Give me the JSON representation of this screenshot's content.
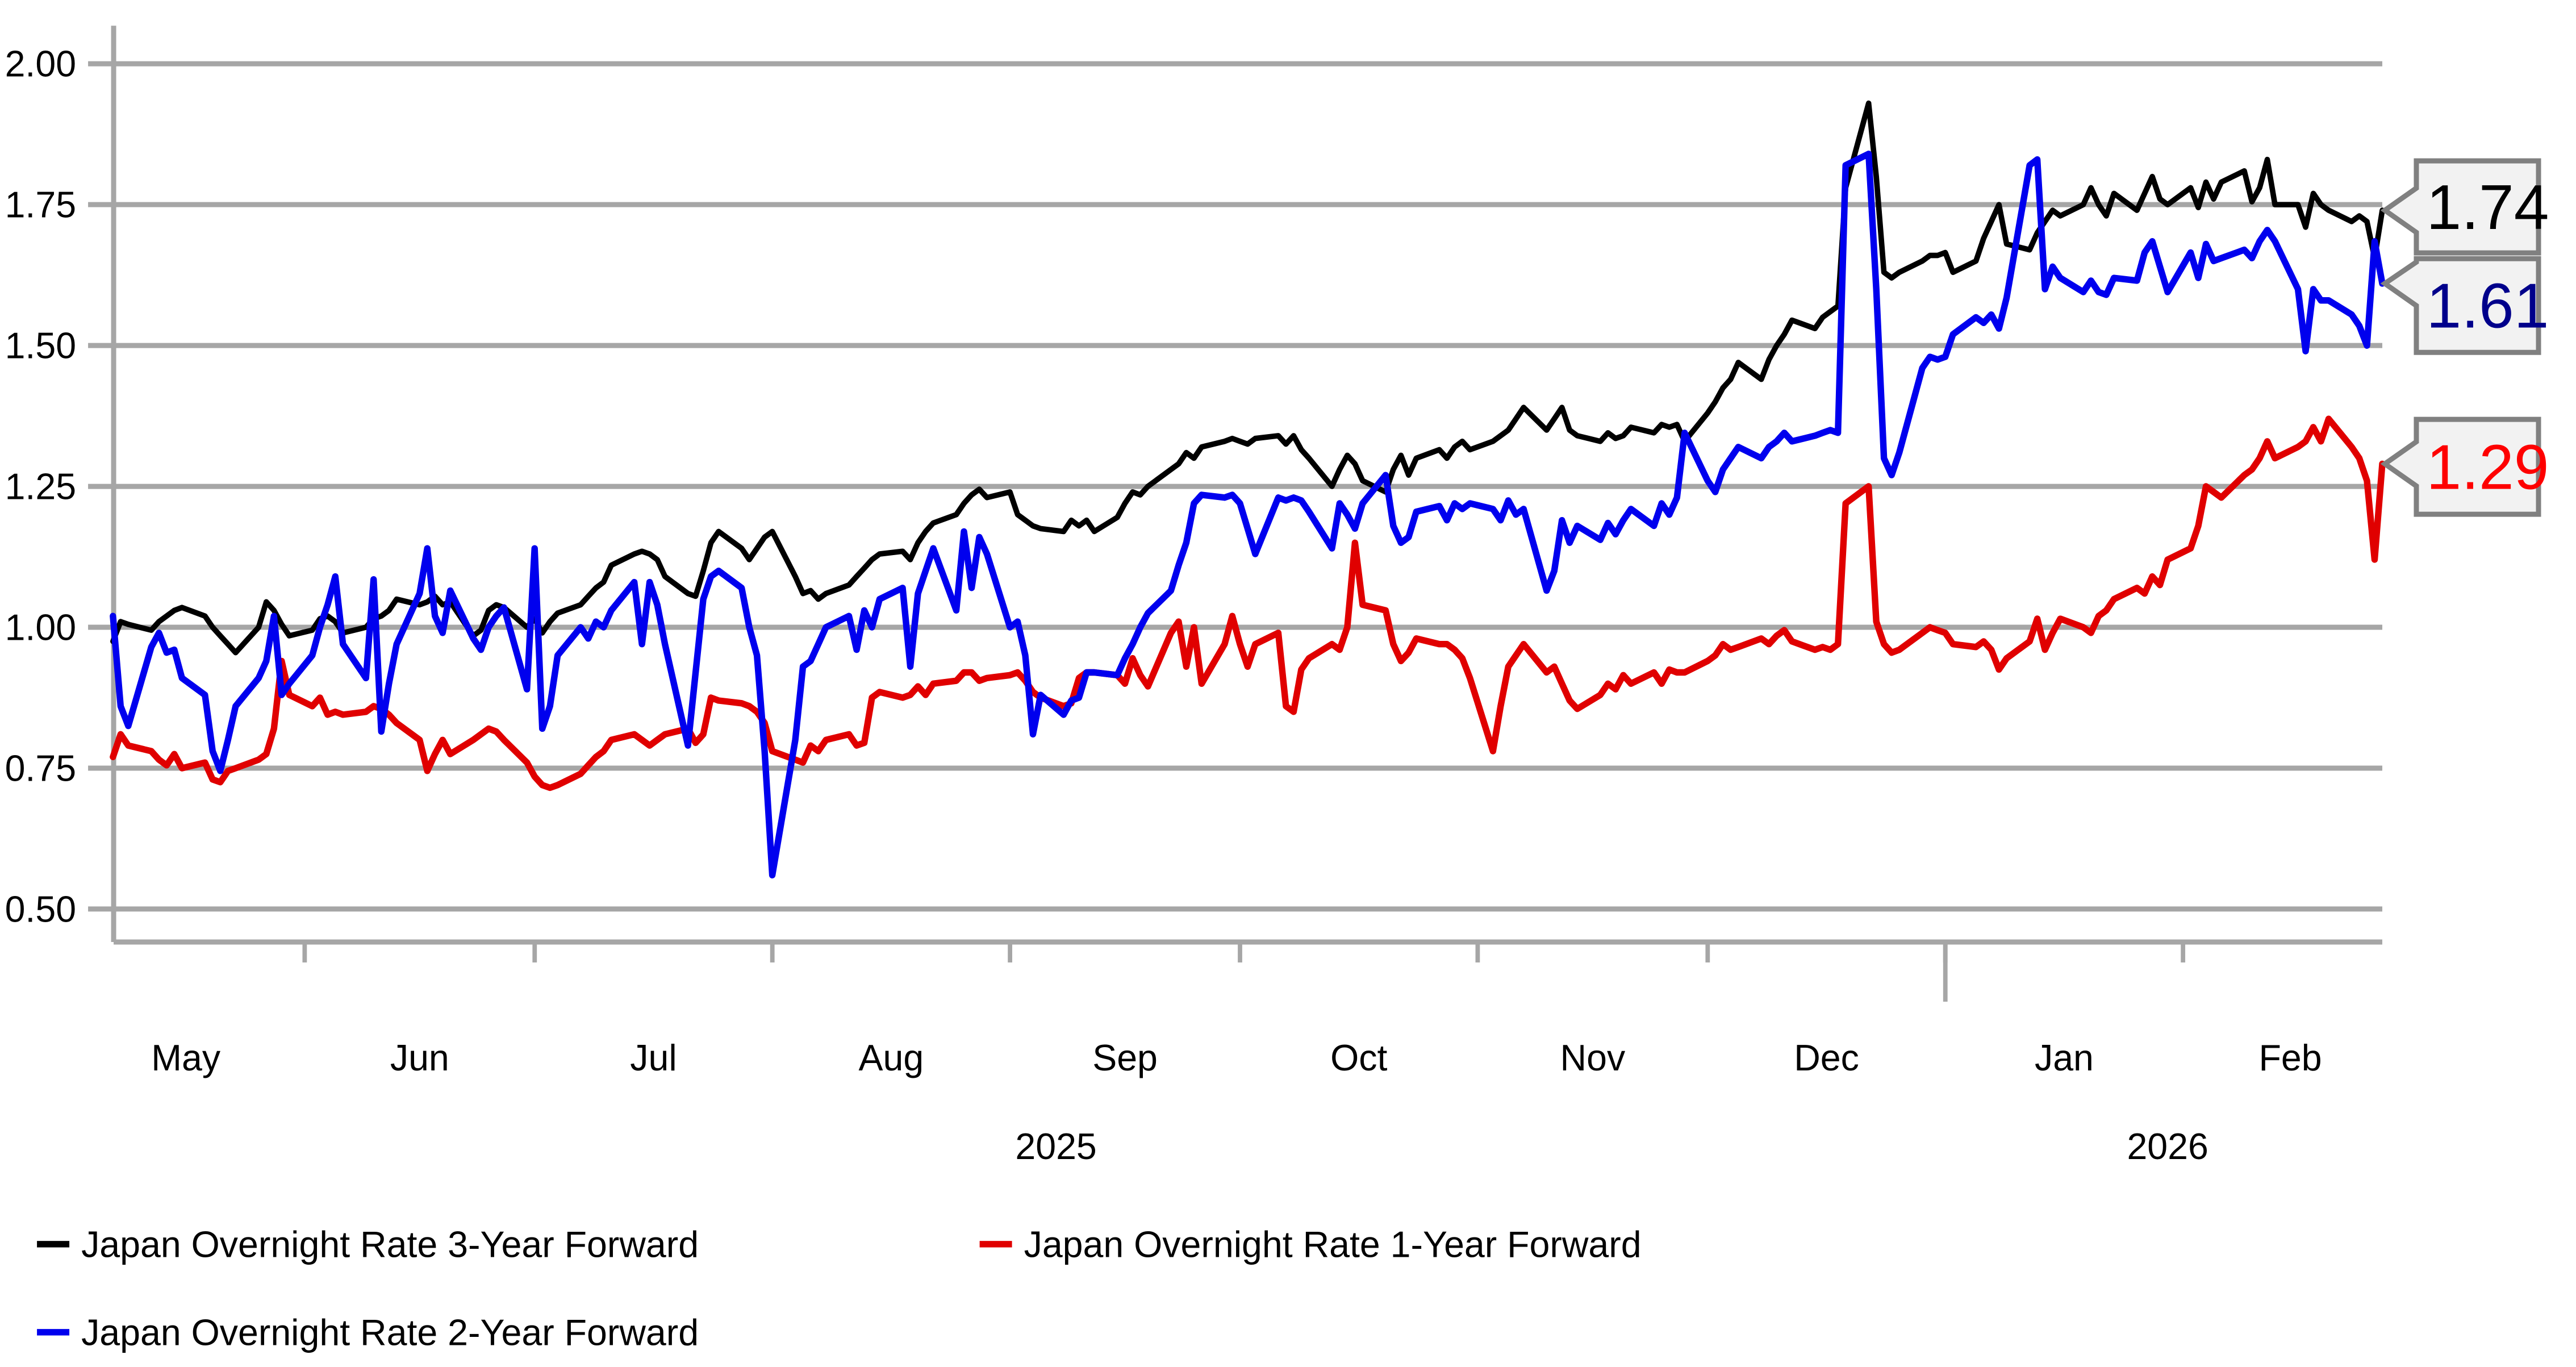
{
  "chart_data": {
    "type": "line",
    "title": "",
    "ylabel": "",
    "xlabel": "",
    "grid": "horizontal",
    "legend_position": "bottom-left",
    "ylim": [
      0.44,
      2.07
    ],
    "yticks": [
      {
        "value": 2.0,
        "label": "2.00"
      },
      {
        "value": 1.75,
        "label": "1.75"
      },
      {
        "value": 1.5,
        "label": "1.50"
      },
      {
        "value": 1.25,
        "label": "1.25"
      },
      {
        "value": 1.0,
        "label": "1.00"
      },
      {
        "value": 0.75,
        "label": "0.75"
      },
      {
        "value": 0.5,
        "label": "0.50"
      }
    ],
    "x_axis": {
      "unit": "days since 2025-05-01",
      "month_boundary_tick_offsets": [
        31,
        61,
        92,
        123,
        153,
        184,
        214,
        245,
        276
      ],
      "year_boundary_tick_offset": 245,
      "month_labels": [
        {
          "text": "May",
          "offset": 15.5
        },
        {
          "text": "Jun",
          "offset": 46
        },
        {
          "text": "Jul",
          "offset": 76.5
        },
        {
          "text": "Aug",
          "offset": 107.5
        },
        {
          "text": "Sep",
          "offset": 138
        },
        {
          "text": "Oct",
          "offset": 168.5
        },
        {
          "text": "Nov",
          "offset": 199
        },
        {
          "text": "Dec",
          "offset": 229.5
        },
        {
          "text": "Jan",
          "offset": 260.5
        },
        {
          "text": "Feb",
          "offset": 290
        }
      ],
      "year_labels": [
        {
          "text": "2025",
          "offset": 129
        },
        {
          "text": "2026",
          "offset": 274
        }
      ]
    },
    "x_offsets": [
      6,
      7,
      8,
      11,
      12,
      13,
      14,
      15,
      18,
      19,
      20,
      21,
      22,
      25,
      26,
      27,
      28,
      29,
      32,
      33,
      34,
      35,
      36,
      39,
      40,
      41,
      42,
      43,
      46,
      47,
      48,
      49,
      50,
      53,
      54,
      55,
      56,
      57,
      60,
      61,
      62,
      63,
      64,
      67,
      68,
      69,
      70,
      71,
      74,
      75,
      76,
      77,
      78,
      81,
      82,
      83,
      84,
      85,
      88,
      89,
      90,
      91,
      92,
      95,
      96,
      97,
      98,
      99,
      102,
      103,
      104,
      105,
      106,
      109,
      110,
      111,
      112,
      113,
      116,
      117,
      118,
      119,
      120,
      123,
      124,
      125,
      126,
      127,
      130,
      131,
      132,
      133,
      134,
      137,
      138,
      139,
      140,
      141,
      144,
      145,
      146,
      147,
      148,
      151,
      152,
      153,
      154,
      155,
      158,
      159,
      160,
      161,
      162,
      165,
      166,
      167,
      168,
      169,
      172,
      173,
      174,
      175,
      176,
      179,
      180,
      181,
      182,
      183,
      186,
      187,
      188,
      189,
      190,
      193,
      194,
      195,
      196,
      197,
      200,
      201,
      202,
      203,
      204,
      207,
      208,
      209,
      210,
      211,
      214,
      215,
      216,
      217,
      218,
      221,
      222,
      223,
      224,
      225,
      228,
      229,
      230,
      231,
      232,
      235,
      236,
      237,
      238,
      239,
      242,
      243,
      244,
      245,
      246,
      249,
      250,
      251,
      252,
      253,
      256,
      257,
      258,
      259,
      260,
      263,
      264,
      265,
      266,
      267,
      270,
      271,
      272,
      273,
      274,
      277,
      278,
      279,
      280,
      281,
      284,
      285,
      286,
      287,
      288,
      291,
      292,
      293,
      294,
      295,
      298,
      299,
      300,
      301,
      302
    ],
    "series": [
      {
        "name": "Japan Overnight Rate 3-Year Forward",
        "color": "#000000",
        "stroke_width": 3.2,
        "end_value": 1.74,
        "values": [
          0.975,
          1.01,
          1.005,
          0.995,
          1.01,
          1.02,
          1.03,
          1.035,
          1.02,
          1.0,
          0.985,
          0.97,
          0.955,
          1.0,
          1.045,
          1.03,
          1.005,
          0.985,
          0.995,
          1.015,
          1.02,
          1.01,
          0.99,
          1.0,
          1.015,
          1.02,
          1.03,
          1.05,
          1.04,
          1.045,
          1.055,
          1.04,
          1.045,
          0.985,
          0.995,
          1.03,
          1.04,
          1.035,
          1.0,
          1.015,
          0.99,
          1.01,
          1.025,
          1.04,
          1.055,
          1.07,
          1.08,
          1.11,
          1.13,
          1.135,
          1.13,
          1.12,
          1.09,
          1.06,
          1.055,
          1.1,
          1.15,
          1.17,
          1.14,
          1.12,
          1.14,
          1.16,
          1.17,
          1.09,
          1.06,
          1.065,
          1.05,
          1.06,
          1.075,
          1.09,
          1.105,
          1.12,
          1.13,
          1.135,
          1.12,
          1.15,
          1.17,
          1.185,
          1.2,
          1.22,
          1.235,
          1.245,
          1.23,
          1.24,
          1.2,
          1.19,
          1.18,
          1.175,
          1.17,
          1.19,
          1.18,
          1.19,
          1.17,
          1.195,
          1.22,
          1.24,
          1.235,
          1.25,
          1.28,
          1.29,
          1.31,
          1.3,
          1.32,
          1.33,
          1.335,
          1.33,
          1.325,
          1.335,
          1.34,
          1.325,
          1.34,
          1.315,
          1.3,
          1.25,
          1.28,
          1.305,
          1.29,
          1.26,
          1.24,
          1.28,
          1.305,
          1.27,
          1.3,
          1.315,
          1.3,
          1.32,
          1.33,
          1.315,
          1.33,
          1.34,
          1.35,
          1.37,
          1.39,
          1.35,
          1.37,
          1.39,
          1.35,
          1.34,
          1.33,
          1.345,
          1.335,
          1.34,
          1.355,
          1.345,
          1.36,
          1.355,
          1.36,
          1.33,
          1.38,
          1.4,
          1.425,
          1.44,
          1.47,
          1.44,
          1.475,
          1.5,
          1.52,
          1.545,
          1.53,
          1.55,
          1.56,
          1.57,
          1.78,
          1.93,
          1.8,
          1.63,
          1.62,
          1.63,
          1.65,
          1.66,
          1.66,
          1.665,
          1.63,
          1.65,
          1.69,
          1.72,
          1.75,
          1.68,
          1.67,
          1.7,
          1.72,
          1.74,
          1.73,
          1.75,
          1.78,
          1.75,
          1.73,
          1.77,
          1.74,
          1.77,
          1.8,
          1.76,
          1.75,
          1.78,
          1.745,
          1.79,
          1.76,
          1.79,
          1.81,
          1.755,
          1.78,
          1.83,
          1.75,
          1.75,
          1.71,
          1.77,
          1.75,
          1.74,
          1.72,
          1.73,
          1.72,
          1.655,
          1.74
        ]
      },
      {
        "name": "Japan Overnight Rate 1-Year Forward",
        "color": "#e00000",
        "stroke_width": 3.8,
        "end_value": 1.29,
        "values": [
          0.77,
          0.81,
          0.79,
          0.78,
          0.765,
          0.755,
          0.775,
          0.75,
          0.76,
          0.73,
          0.725,
          0.745,
          0.75,
          0.765,
          0.775,
          0.82,
          0.94,
          0.88,
          0.86,
          0.875,
          0.845,
          0.85,
          0.845,
          0.85,
          0.86,
          0.855,
          0.845,
          0.83,
          0.8,
          0.745,
          0.775,
          0.8,
          0.775,
          0.8,
          0.81,
          0.82,
          0.815,
          0.8,
          0.76,
          0.735,
          0.72,
          0.715,
          0.72,
          0.74,
          0.755,
          0.77,
          0.78,
          0.8,
          0.81,
          0.8,
          0.79,
          0.8,
          0.81,
          0.82,
          0.795,
          0.81,
          0.875,
          0.87,
          0.865,
          0.86,
          0.85,
          0.83,
          0.78,
          0.765,
          0.76,
          0.79,
          0.78,
          0.8,
          0.81,
          0.79,
          0.795,
          0.875,
          0.885,
          0.875,
          0.88,
          0.895,
          0.88,
          0.9,
          0.905,
          0.92,
          0.92,
          0.905,
          0.91,
          0.915,
          0.92,
          0.905,
          0.885,
          0.875,
          0.86,
          0.865,
          0.91,
          0.92,
          0.92,
          0.915,
          0.9,
          0.945,
          0.915,
          0.895,
          0.99,
          1.01,
          0.93,
          1.0,
          0.9,
          0.97,
          1.02,
          0.97,
          0.93,
          0.97,
          0.99,
          0.86,
          0.85,
          0.925,
          0.945,
          0.97,
          0.96,
          1.0,
          1.15,
          1.04,
          1.03,
          0.97,
          0.94,
          0.955,
          0.98,
          0.97,
          0.97,
          0.96,
          0.945,
          0.91,
          0.78,
          0.86,
          0.93,
          0.95,
          0.97,
          0.92,
          0.93,
          0.9,
          0.87,
          0.855,
          0.88,
          0.9,
          0.89,
          0.915,
          0.9,
          0.92,
          0.9,
          0.925,
          0.92,
          0.92,
          0.94,
          0.95,
          0.97,
          0.96,
          0.965,
          0.98,
          0.97,
          0.985,
          0.995,
          0.975,
          0.96,
          0.965,
          0.96,
          0.97,
          1.22,
          1.25,
          1.01,
          0.97,
          0.955,
          0.96,
          0.99,
          1.0,
          0.995,
          0.99,
          0.97,
          0.965,
          0.975,
          0.96,
          0.925,
          0.945,
          0.975,
          1.015,
          0.96,
          0.99,
          1.015,
          1.0,
          0.99,
          1.02,
          1.03,
          1.05,
          1.07,
          1.06,
          1.09,
          1.075,
          1.12,
          1.14,
          1.18,
          1.25,
          1.24,
          1.23,
          1.27,
          1.28,
          1.3,
          1.33,
          1.3,
          1.32,
          1.33,
          1.355,
          1.33,
          1.37,
          1.32,
          1.3,
          1.26,
          1.12,
          1.29
        ]
      },
      {
        "name": "Japan Overnight Rate 2-Year Forward",
        "color": "#0000ee",
        "stroke_width": 3.8,
        "end_value": 1.61,
        "values": [
          1.02,
          0.86,
          0.825,
          0.965,
          0.99,
          0.955,
          0.96,
          0.91,
          0.88,
          0.78,
          0.745,
          0.8,
          0.86,
          0.91,
          0.94,
          1.02,
          0.88,
          0.9,
          0.95,
          1.0,
          1.04,
          1.09,
          0.97,
          0.91,
          1.085,
          0.815,
          0.9,
          0.97,
          1.06,
          1.14,
          1.02,
          0.99,
          1.065,
          0.98,
          0.96,
          1.0,
          1.02,
          1.035,
          0.89,
          1.14,
          0.82,
          0.86,
          0.95,
          1.0,
          0.98,
          1.01,
          1.0,
          1.03,
          1.08,
          0.97,
          1.08,
          1.04,
          0.97,
          0.79,
          0.92,
          1.05,
          1.09,
          1.1,
          1.07,
          1.0,
          0.95,
          0.78,
          0.56,
          0.8,
          0.93,
          0.94,
          0.97,
          1.0,
          1.02,
          0.96,
          1.03,
          1.0,
          1.05,
          1.07,
          0.93,
          1.06,
          1.1,
          1.14,
          1.03,
          1.17,
          1.07,
          1.16,
          1.13,
          1.0,
          1.01,
          0.95,
          0.81,
          0.88,
          0.845,
          0.87,
          0.875,
          0.92,
          0.92,
          0.915,
          0.945,
          0.97,
          1.0,
          1.025,
          1.065,
          1.11,
          1.15,
          1.22,
          1.235,
          1.23,
          1.235,
          1.22,
          1.175,
          1.13,
          1.23,
          1.225,
          1.23,
          1.225,
          1.205,
          1.14,
          1.22,
          1.2,
          1.175,
          1.22,
          1.27,
          1.18,
          1.15,
          1.16,
          1.205,
          1.215,
          1.19,
          1.22,
          1.21,
          1.22,
          1.21,
          1.19,
          1.225,
          1.2,
          1.21,
          1.065,
          1.1,
          1.19,
          1.15,
          1.18,
          1.155,
          1.185,
          1.165,
          1.19,
          1.21,
          1.18,
          1.22,
          1.2,
          1.23,
          1.345,
          1.26,
          1.24,
          1.28,
          1.3,
          1.32,
          1.3,
          1.32,
          1.33,
          1.345,
          1.33,
          1.34,
          1.345,
          1.35,
          1.345,
          1.82,
          1.84,
          1.6,
          1.3,
          1.27,
          1.31,
          1.46,
          1.48,
          1.475,
          1.48,
          1.52,
          1.55,
          1.54,
          1.555,
          1.53,
          1.585,
          1.82,
          1.83,
          1.6,
          1.64,
          1.62,
          1.595,
          1.615,
          1.595,
          1.59,
          1.62,
          1.615,
          1.665,
          1.685,
          1.64,
          1.595,
          1.665,
          1.62,
          1.68,
          1.65,
          1.655,
          1.67,
          1.655,
          1.685,
          1.705,
          1.685,
          1.6,
          1.49,
          1.6,
          1.58,
          1.58,
          1.555,
          1.535,
          1.5,
          1.685,
          1.61
        ]
      }
    ],
    "end_callouts": [
      {
        "text": "1.74",
        "text_color": "#000000",
        "value": 1.74,
        "box_top": 94.3,
        "box_bottom": 148.3
      },
      {
        "text": "1.61",
        "text_color": "#00008b",
        "value": 1.61,
        "box_top": 151.7,
        "box_bottom": 206.7
      },
      {
        "text": "1.29",
        "text_color": "#fe0000",
        "value": 1.29,
        "box_top": 246.0,
        "box_bottom": 301.7
      }
    ],
    "legend": {
      "rows": [
        [
          {
            "series": 0,
            "label": "Japan Overnight Rate 3-Year Forward",
            "color": "#000000"
          },
          {
            "series": 1,
            "label": "Japan Overnight Rate 1-Year Forward",
            "color": "#e00000"
          }
        ],
        [
          {
            "series": 2,
            "label": "Japan Overnight Rate 2-Year Forward",
            "color": "#0000ee"
          }
        ]
      ]
    },
    "style": {
      "grid_color": "#a6a6a6",
      "axis_color": "#a6a6a6",
      "callout_border_color": "#808080",
      "callout_fill": "#f2f2f2",
      "text_color": "#000000"
    }
  }
}
